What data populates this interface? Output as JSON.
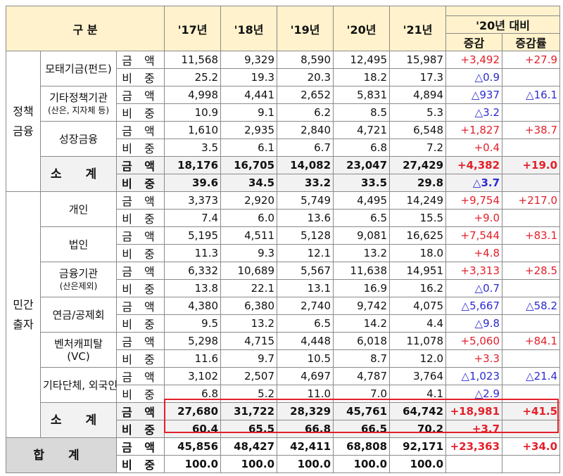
{
  "header": {
    "category": "구 분",
    "years": [
      "'17년",
      "'18년",
      "'19년",
      "'20년",
      "'21년"
    ],
    "compare": "'20년 대비",
    "change": "증감",
    "rate": "증감률"
  },
  "sections": [
    {
      "label": "정책금융",
      "items": [
        {
          "name": "모태기금(펀드)",
          "note": "",
          "rows": [
            {
              "metric": "금 액",
              "values": [
                "11,568",
                "9,329",
                "8,590",
                "12,495",
                "15,987"
              ],
              "change": "+3,492",
              "rate": "+27.9"
            },
            {
              "metric": "비 중",
              "values": [
                "25.2",
                "19.3",
                "20.3",
                "18.2",
                "17.3"
              ],
              "change": "△0.9",
              "rate": ""
            }
          ]
        },
        {
          "name": "기타정책기관",
          "note": "(산은, 지자체 등)",
          "rows": [
            {
              "metric": "금 액",
              "values": [
                "4,998",
                "4,441",
                "2,652",
                "5,831",
                "4,894"
              ],
              "change": "△937",
              "rate": "△16.1"
            },
            {
              "metric": "비 중",
              "values": [
                "10.9",
                "9.1",
                "6.2",
                "8.5",
                "5.3"
              ],
              "change": "△3.2",
              "rate": ""
            }
          ]
        },
        {
          "name": "성장금융",
          "note": "",
          "rows": [
            {
              "metric": "금 액",
              "values": [
                "1,610",
                "2,935",
                "2,840",
                "4,721",
                "6,548"
              ],
              "change": "+1,827",
              "rate": "+38.7"
            },
            {
              "metric": "비 중",
              "values": [
                "3.5",
                "6.1",
                "6.7",
                "6.8",
                "7.2"
              ],
              "change": "+0.4",
              "rate": ""
            }
          ]
        }
      ],
      "subtotal": {
        "name": "소 계",
        "rows": [
          {
            "metric": "금 액",
            "values": [
              "18,176",
              "16,705",
              "14,082",
              "23,047",
              "27,429"
            ],
            "change": "+4,382",
            "rate": "+19.0"
          },
          {
            "metric": "비 중",
            "values": [
              "39.6",
              "34.5",
              "33.2",
              "33.5",
              "29.8"
            ],
            "change": "△3.7",
            "rate": ""
          }
        ]
      }
    },
    {
      "label": "민간출자",
      "items": [
        {
          "name": "개인",
          "note": "",
          "rows": [
            {
              "metric": "금 액",
              "values": [
                "3,373",
                "2,920",
                "5,749",
                "4,495",
                "14,249"
              ],
              "change": "+9,754",
              "rate": "+217.0"
            },
            {
              "metric": "비 중",
              "values": [
                "7.4",
                "6.0",
                "13.6",
                "6.5",
                "15.5"
              ],
              "change": "+9.0",
              "rate": ""
            }
          ]
        },
        {
          "name": "법인",
          "note": "",
          "rows": [
            {
              "metric": "금 액",
              "values": [
                "5,195",
                "4,511",
                "5,128",
                "9,081",
                "16,625"
              ],
              "change": "+7,544",
              "rate": "+83.1"
            },
            {
              "metric": "비 중",
              "values": [
                "11.3",
                "9.3",
                "12.1",
                "13.2",
                "18.0"
              ],
              "change": "+4.8",
              "rate": ""
            }
          ]
        },
        {
          "name": "금융기관",
          "note": "(산은제외)",
          "rows": [
            {
              "metric": "금 액",
              "values": [
                "6,332",
                "10,689",
                "5,567",
                "11,638",
                "14,951"
              ],
              "change": "+3,313",
              "rate": "+28.5"
            },
            {
              "metric": "비 중",
              "values": [
                "13.8",
                "22.1",
                "13.1",
                "16.9",
                "16.2"
              ],
              "change": "△0.7",
              "rate": ""
            }
          ]
        },
        {
          "name": "연금/공제회",
          "note": "",
          "rows": [
            {
              "metric": "금 액",
              "values": [
                "4,380",
                "6,380",
                "2,740",
                "9,742",
                "4,075"
              ],
              "change": "△5,667",
              "rate": "△58.2"
            },
            {
              "metric": "비 중",
              "values": [
                "9.5",
                "13.2",
                "6.5",
                "14.2",
                "4.4"
              ],
              "change": "△9.8",
              "rate": ""
            }
          ]
        },
        {
          "name": "벤처캐피탈",
          "note": "(VC)",
          "rows": [
            {
              "metric": "금 액",
              "values": [
                "5,298",
                "4,715",
                "4,448",
                "6,018",
                "11,078"
              ],
              "change": "+5,060",
              "rate": "+84.1"
            },
            {
              "metric": "비 중",
              "values": [
                "11.6",
                "9.7",
                "10.5",
                "8.7",
                "12.0"
              ],
              "change": "+3.3",
              "rate": ""
            }
          ]
        },
        {
          "name": "기타단체, 외국인",
          "note": "",
          "rows": [
            {
              "metric": "금 액",
              "values": [
                "3,102",
                "2,507",
                "4,697",
                "4,787",
                "3,764"
              ],
              "change": "△1,023",
              "rate": "△21.4"
            },
            {
              "metric": "비 중",
              "values": [
                "6.8",
                "5.2",
                "11.0",
                "7.0",
                "4.1"
              ],
              "change": "△2.9",
              "rate": ""
            }
          ]
        }
      ],
      "subtotal": {
        "name": "소 계",
        "rows": [
          {
            "metric": "금 액",
            "values": [
              "27,680",
              "31,722",
              "28,329",
              "45,761",
              "64,742"
            ],
            "change": "+18,981",
            "rate": "+41.5"
          },
          {
            "metric": "비 중",
            "values": [
              "60.4",
              "65.5",
              "66.8",
              "66.5",
              "70.2"
            ],
            "change": "+3.7",
            "rate": ""
          }
        ]
      }
    }
  ],
  "total": {
    "name": "합 계",
    "rows": [
      {
        "metric": "금 액",
        "values": [
          "45,856",
          "48,427",
          "42,411",
          "68,808",
          "92,171"
        ],
        "change": "+23,363",
        "rate": "+34.0"
      },
      {
        "metric": "비 중",
        "values": [
          "100.0",
          "100.0",
          "100.0",
          "100.0",
          "100.0"
        ],
        "change": "",
        "rate": ""
      }
    ]
  },
  "colors": {
    "header_bg": "#fff2cc",
    "subtotal_bg": "#f2f2f2",
    "total_bg": "#d9d9d9",
    "increase": "#e3202a",
    "decrease": "#2b2bd0",
    "highlight_box": "#e3202a"
  }
}
